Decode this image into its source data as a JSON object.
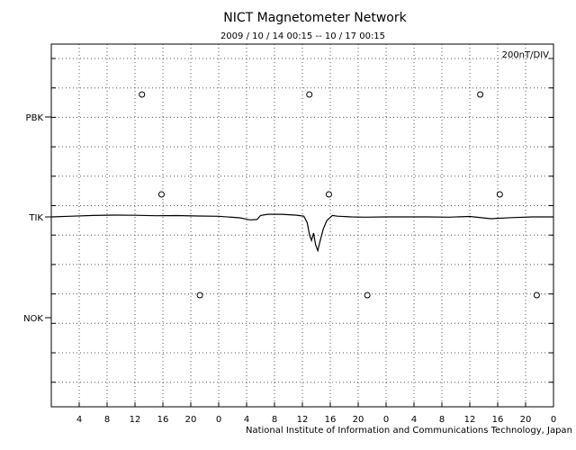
{
  "chart_data": {
    "type": "line",
    "title": "NICT Magnetometer Network",
    "subtitle": "2009 / 10 / 14   00:15 -- 10 / 17   00:15",
    "scale_label": "200nT/DIV",
    "credit": "National Institute of Information and Communications Technology, Japan",
    "x_tick_labels": [
      "4",
      "8",
      "12",
      "16",
      "20",
      "0",
      "4",
      "8",
      "12",
      "16",
      "20",
      "0",
      "4",
      "8",
      "12",
      "16",
      "20",
      "0"
    ],
    "x_range_hours": [
      0,
      72
    ],
    "grid": true,
    "stations": [
      {
        "name": "PBK",
        "midnight_markers_h": [
          13,
          61.5
        ],
        "noon_marker_h": 37
      },
      {
        "name": "TIK",
        "midnight_markers_h": [
          15.8,
          64.3
        ],
        "noon_marker_h": 39.8
      },
      {
        "name": "NOK",
        "midnight_markers_h": [
          21.3,
          69.6
        ],
        "noon_marker_h": 45.3
      }
    ],
    "series": [
      {
        "name": "TIK",
        "x": [
          0,
          3,
          6,
          9,
          12,
          15,
          18,
          21,
          24,
          27,
          28.5,
          29.5,
          30,
          31,
          33,
          35,
          36.2,
          36.7,
          37,
          37.3,
          37.6,
          37.9,
          38.2,
          38.5,
          39,
          39.5,
          40.3,
          41,
          43,
          45,
          48,
          51,
          54,
          57,
          60,
          63,
          66,
          69,
          72
        ],
        "values": [
          0,
          5,
          10,
          12,
          11,
          8,
          9,
          6,
          4,
          -6,
          -20,
          -18,
          10,
          18,
          18,
          12,
          5,
          -40,
          -120,
          -160,
          -110,
          -190,
          -230,
          -170,
          -80,
          -25,
          10,
          5,
          0,
          -2,
          0,
          0,
          0,
          -2,
          3,
          -12,
          -5,
          0,
          0
        ]
      }
    ]
  }
}
